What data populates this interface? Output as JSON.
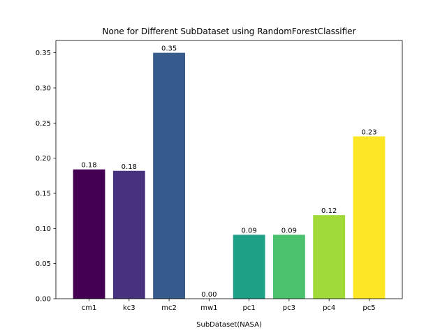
{
  "chart_data": {
    "type": "bar",
    "title": "None for Different SubDataset using RandomForestClassifier",
    "xlabel": "SubDataset(NASA)",
    "ylabel": "",
    "categories": [
      "cm1",
      "kc3",
      "mc2",
      "mw1",
      "pc1",
      "pc3",
      "pc4",
      "pc5"
    ],
    "values": [
      0.184,
      0.182,
      0.35,
      0.0,
      0.091,
      0.091,
      0.119,
      0.231
    ],
    "data_labels": [
      "0.18",
      "0.18",
      "0.35",
      "0.00",
      "0.09",
      "0.09",
      "0.12",
      "0.23"
    ],
    "colors": [
      "#440154",
      "#46327e",
      "#365c8d",
      "#277f8e",
      "#1fa187",
      "#4ac16d",
      "#a0da39",
      "#fde725"
    ],
    "ylim": [
      0,
      0.3675
    ],
    "yticks": [
      0.0,
      0.05,
      0.1,
      0.15,
      0.2,
      0.25,
      0.3,
      0.35
    ],
    "ytick_labels": [
      "0.00",
      "0.05",
      "0.10",
      "0.15",
      "0.20",
      "0.25",
      "0.30",
      "0.35"
    ],
    "grid": false
  }
}
